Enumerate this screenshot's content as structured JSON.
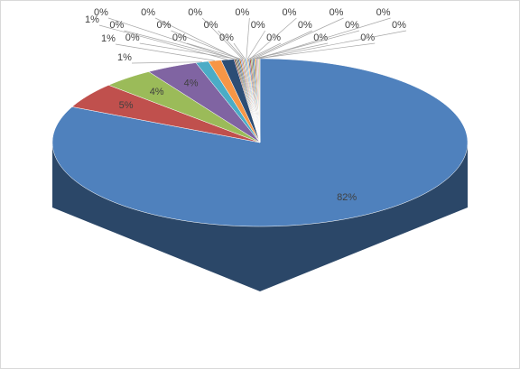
{
  "chart_data": {
    "type": "pie3d",
    "values": [
      82,
      5,
      4,
      4,
      1,
      1,
      1,
      0.1,
      0.1,
      0.1,
      0.1,
      0.1,
      0.1,
      0.1,
      0.1,
      0.1,
      0.1,
      0.1,
      0.1,
      0.1,
      0.1,
      0.1,
      0.1,
      0.1,
      0.1,
      0.1,
      0.1
    ],
    "value_labels": [
      "82%",
      "5%",
      "4%",
      "4%",
      "1%",
      "1%",
      "1%",
      "0%",
      "0%",
      "0%",
      "0%",
      "0%",
      "0%",
      "0%",
      "0%",
      "0%",
      "0%",
      "0%",
      "0%",
      "0%",
      "0%",
      "0%",
      "0%",
      "0%",
      "0%",
      "0%",
      "0%"
    ],
    "colors": [
      "#4f81bd",
      "#c0504d",
      "#9bbb59",
      "#8064a2",
      "#4bacc6",
      "#f79646",
      "#2c4d75",
      "#772c2a",
      "#5f7530",
      "#4d3b62",
      "#276a7c",
      "#b65708",
      "#729aca",
      "#cd7371",
      "#afc97a",
      "#9983b5",
      "#6fbdd1",
      "#f9ab6b",
      "#3a679c",
      "#9f3b38",
      "#7e9c40",
      "#664f83",
      "#358ea6",
      "#f3740b",
      "#95b3d7",
      "#d99694",
      "#c3d69b"
    ]
  }
}
